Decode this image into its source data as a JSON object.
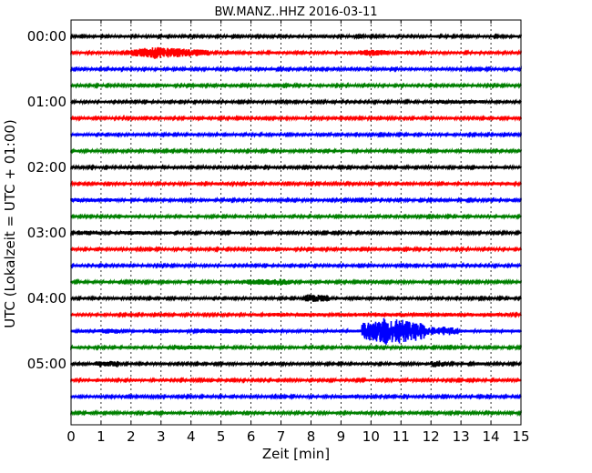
{
  "chart_data": {
    "type": "line",
    "subtype": "seismogram-dayplot",
    "title": "BW.MANZ..HHZ 2016-03-11",
    "xlabel": "Zeit  [min]",
    "ylabel": "UTC (Lokalzeit = UTC + 01:00)",
    "xlim": [
      0,
      15
    ],
    "x_ticks": [
      "0",
      "1",
      "2",
      "3",
      "4",
      "5",
      "6",
      "7",
      "8",
      "9",
      "10",
      "11",
      "12",
      "13",
      "14",
      "15"
    ],
    "y_tick_labels": [
      {
        "trace": 0,
        "label": "00:00"
      },
      {
        "trace": 4,
        "label": "01:00"
      },
      {
        "trace": 8,
        "label": "02:00"
      },
      {
        "trace": 12,
        "label": "03:00"
      },
      {
        "trace": 16,
        "label": "04:00"
      },
      {
        "trace": 20,
        "label": "05:00"
      }
    ],
    "grid": "vertical dotted at each minute",
    "trace_interval_min": 15,
    "trace_count": 24,
    "colors": [
      "#000000",
      "#ff0000",
      "#0000ff",
      "#008000"
    ],
    "noise_level": 1.0,
    "events": [
      {
        "trace": 0,
        "start": 11.9,
        "end": 12.2,
        "amp": 1.5
      },
      {
        "trace": 1,
        "start": 1.9,
        "end": 4.6,
        "amp": 3,
        "peak": 2.8,
        "peak_amp": 7
      },
      {
        "trace": 1,
        "start": 9.6,
        "end": 10.6,
        "amp": 2.5,
        "peak": 10.0,
        "peak_amp": 4
      },
      {
        "trace": 1,
        "start": 10.9,
        "end": 11.5,
        "amp": 2.5
      },
      {
        "trace": 4,
        "start": 12.2,
        "end": 13.8,
        "amp": 2.5
      },
      {
        "trace": 9,
        "start": 13.5,
        "end": 14.9,
        "amp": 2
      },
      {
        "trace": 10,
        "start": 0.0,
        "end": 1.5,
        "amp": 2.5
      },
      {
        "trace": 11,
        "start": 2.0,
        "end": 4.6,
        "amp": 1.5
      },
      {
        "trace": 12,
        "start": 0.2,
        "end": 1.0,
        "amp": 3
      },
      {
        "trace": 12,
        "start": 1.5,
        "end": 2.7,
        "amp": 2.5
      },
      {
        "trace": 12,
        "start": 3.0,
        "end": 3.4,
        "amp": 2
      },
      {
        "trace": 15,
        "start": 5.6,
        "end": 7.4,
        "amp": 2.5,
        "peak": 7.0,
        "peak_amp": 4
      },
      {
        "trace": 16,
        "start": 7.8,
        "end": 8.6,
        "amp": 3.5,
        "peak": 7.9,
        "peak_amp": 5
      },
      {
        "trace": 16,
        "start": 9.4,
        "end": 9.7,
        "amp": 2
      },
      {
        "trace": 17,
        "start": 6.1,
        "end": 14.6,
        "amp": 2.5
      },
      {
        "trace": 18,
        "start": 0.0,
        "end": 15.0,
        "amp": 1.8
      },
      {
        "trace": 18,
        "start": 0.9,
        "end": 1.6,
        "amp": 3
      },
      {
        "trace": 18,
        "start": 2.6,
        "end": 3.3,
        "amp": 3
      },
      {
        "trace": 18,
        "start": 4.2,
        "end": 6.5,
        "amp": 3
      },
      {
        "trace": 18,
        "start": 9.7,
        "end": 11.8,
        "amp": 9,
        "peak": 10.6,
        "peak_amp": 16
      },
      {
        "trace": 18,
        "start": 11.8,
        "end": 12.9,
        "amp": 5
      },
      {
        "trace": 19,
        "start": 0.0,
        "end": 2.2,
        "amp": 1.5
      },
      {
        "trace": 19,
        "start": 3.5,
        "end": 4.6,
        "amp": 3
      },
      {
        "trace": 20,
        "start": 0.8,
        "end": 1.6,
        "amp": 4
      },
      {
        "trace": 20,
        "start": 9.7,
        "end": 10.1,
        "amp": 2
      },
      {
        "trace": 20,
        "start": 12.0,
        "end": 12.4,
        "amp": 4
      },
      {
        "trace": 20,
        "start": 13.6,
        "end": 13.9,
        "amp": 2
      },
      {
        "trace": 22,
        "start": 8.9,
        "end": 9.5,
        "amp": 2.5
      }
    ]
  }
}
